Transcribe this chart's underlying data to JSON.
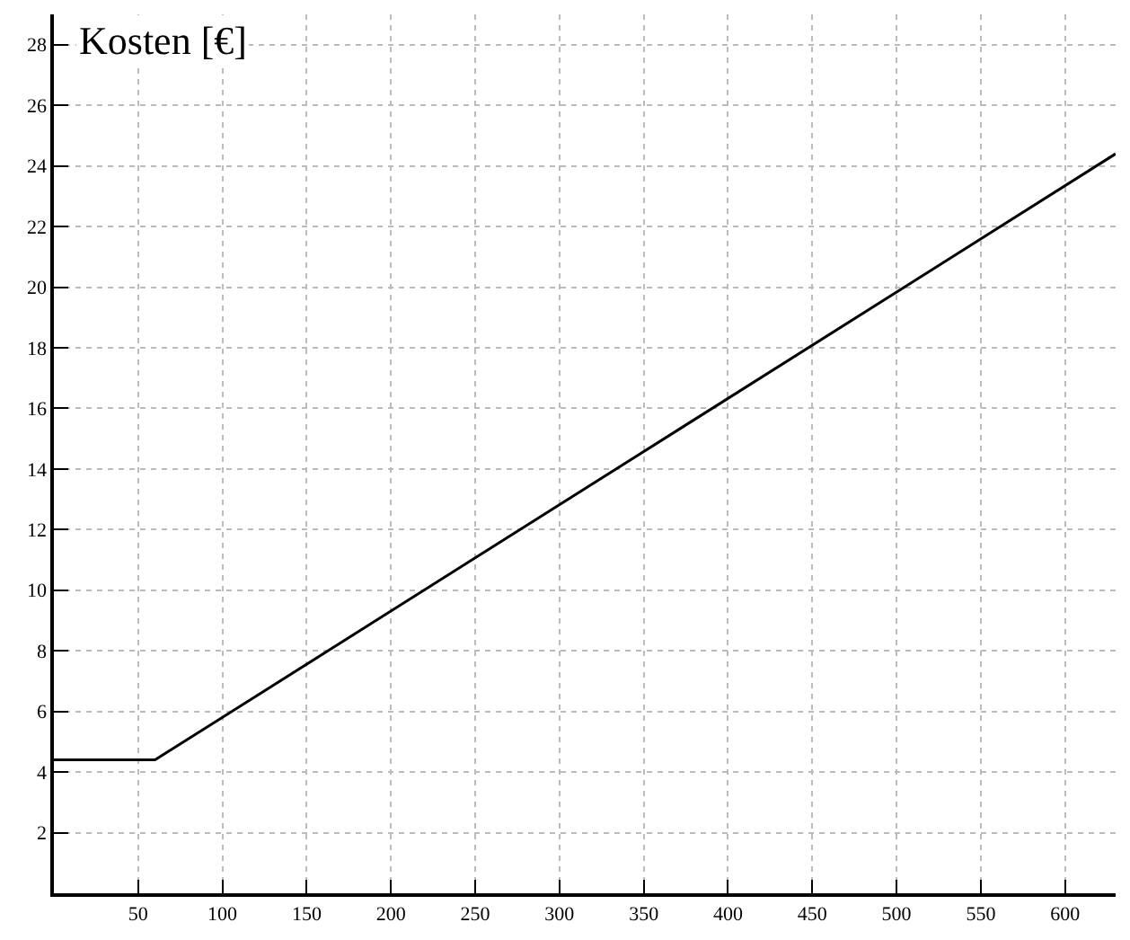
{
  "chart_data": {
    "type": "line",
    "ylabel": "Kosten [€]",
    "x": [
      0,
      60,
      630
    ],
    "series": [
      {
        "color": "#000000",
        "values": [
          4.4,
          4.4,
          24.4
        ]
      }
    ],
    "xlim": [
      0,
      630
    ],
    "ylim": [
      0,
      29
    ],
    "xticks": [
      50,
      100,
      150,
      200,
      250,
      300,
      350,
      400,
      450,
      500,
      550,
      600
    ],
    "yticks": [
      2,
      4,
      6,
      8,
      10,
      12,
      14,
      16,
      18,
      20,
      22,
      24,
      26,
      28
    ],
    "grid": true,
    "marker": "none",
    "line_style": "solid"
  }
}
